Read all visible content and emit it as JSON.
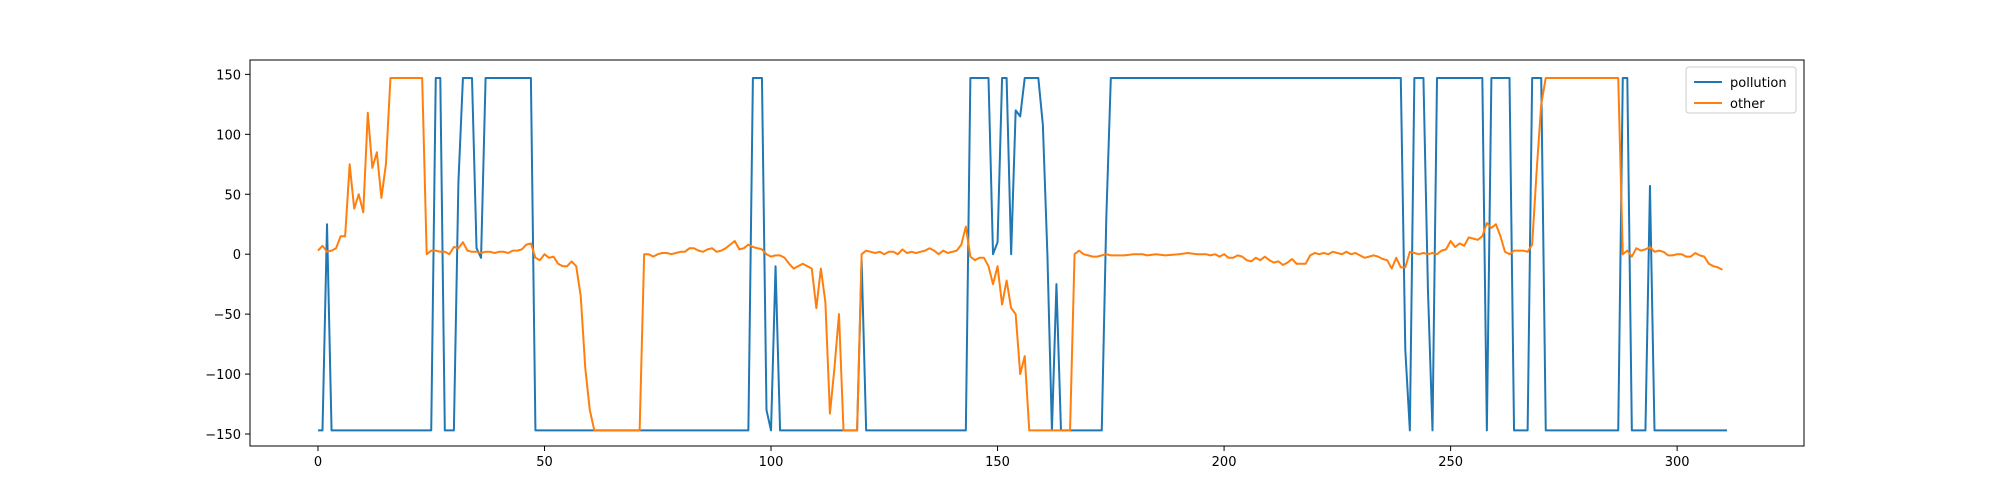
{
  "chart_data": {
    "type": "line",
    "title": "",
    "xlabel": "",
    "ylabel": "",
    "xlim": [
      -15,
      328
    ],
    "ylim": [
      -160,
      162
    ],
    "xticks": [
      0,
      50,
      100,
      150,
      200,
      250,
      300
    ],
    "yticks": [
      -150,
      -100,
      -50,
      0,
      50,
      100,
      150
    ],
    "grid": false,
    "legend_position": "top-right",
    "series": [
      {
        "name": "pollution",
        "color": "#1f77b4",
        "points": [
          [
            0,
            -147
          ],
          [
            1,
            -147
          ],
          [
            2,
            25
          ],
          [
            3,
            -147
          ],
          [
            25,
            -147
          ],
          [
            26,
            147
          ],
          [
            27,
            147
          ],
          [
            28,
            -147
          ],
          [
            30,
            -147
          ],
          [
            31,
            60
          ],
          [
            32,
            147
          ],
          [
            34,
            147
          ],
          [
            35,
            5
          ],
          [
            36,
            -3
          ],
          [
            37,
            147
          ],
          [
            47,
            147
          ],
          [
            48,
            -147
          ],
          [
            95,
            -147
          ],
          [
            96,
            147
          ],
          [
            98,
            147
          ],
          [
            99,
            -130
          ],
          [
            100,
            -147
          ],
          [
            101,
            -10
          ],
          [
            102,
            -147
          ],
          [
            119,
            -147
          ],
          [
            120,
            -5
          ],
          [
            121,
            -147
          ],
          [
            143,
            -147
          ],
          [
            144,
            147
          ],
          [
            148,
            147
          ],
          [
            149,
            0
          ],
          [
            150,
            10
          ],
          [
            151,
            147
          ],
          [
            152,
            147
          ],
          [
            153,
            0
          ],
          [
            154,
            120
          ],
          [
            155,
            115
          ],
          [
            156,
            147
          ],
          [
            159,
            147
          ],
          [
            160,
            108
          ],
          [
            161,
            0
          ],
          [
            162,
            -147
          ],
          [
            163,
            -25
          ],
          [
            164,
            -147
          ],
          [
            173,
            -147
          ],
          [
            174,
            30
          ],
          [
            175,
            147
          ],
          [
            239,
            147
          ],
          [
            240,
            -80
          ],
          [
            241,
            -147
          ],
          [
            242,
            147
          ],
          [
            244,
            147
          ],
          [
            245,
            -30
          ],
          [
            246,
            -147
          ],
          [
            247,
            147
          ],
          [
            257,
            147
          ],
          [
            258,
            -147
          ],
          [
            259,
            147
          ],
          [
            263,
            147
          ],
          [
            264,
            -147
          ],
          [
            267,
            -147
          ],
          [
            268,
            147
          ],
          [
            270,
            147
          ],
          [
            271,
            -147
          ],
          [
            287,
            -147
          ],
          [
            288,
            147
          ],
          [
            289,
            147
          ],
          [
            290,
            -147
          ],
          [
            293,
            -147
          ],
          [
            294,
            57
          ],
          [
            295,
            -147
          ],
          [
            311,
            -147
          ]
        ]
      },
      {
        "name": "other",
        "color": "#ff7f0e",
        "points": [
          [
            0,
            3
          ],
          [
            1,
            7
          ],
          [
            2,
            2
          ],
          [
            3,
            3
          ],
          [
            4,
            5
          ],
          [
            5,
            15
          ],
          [
            6,
            15
          ],
          [
            7,
            75
          ],
          [
            8,
            38
          ],
          [
            9,
            50
          ],
          [
            10,
            35
          ],
          [
            11,
            118
          ],
          [
            12,
            72
          ],
          [
            13,
            85
          ],
          [
            14,
            47
          ],
          [
            15,
            75
          ],
          [
            16,
            147
          ],
          [
            23,
            147
          ],
          [
            24,
            0
          ],
          [
            25,
            3
          ],
          [
            26,
            3
          ],
          [
            27,
            2
          ],
          [
            28,
            2
          ],
          [
            29,
            0
          ],
          [
            30,
            6
          ],
          [
            31,
            5
          ],
          [
            32,
            10
          ],
          [
            33,
            3
          ],
          [
            34,
            2
          ],
          [
            35,
            2
          ],
          [
            36,
            1
          ],
          [
            37,
            2
          ],
          [
            38,
            2
          ],
          [
            39,
            1
          ],
          [
            40,
            2
          ],
          [
            41,
            2
          ],
          [
            42,
            1
          ],
          [
            43,
            3
          ],
          [
            44,
            3
          ],
          [
            45,
            4
          ],
          [
            46,
            8
          ],
          [
            47,
            9
          ],
          [
            48,
            -3
          ],
          [
            49,
            -5
          ],
          [
            50,
            0
          ],
          [
            51,
            -3
          ],
          [
            52,
            -2
          ],
          [
            53,
            -8
          ],
          [
            54,
            -10
          ],
          [
            55,
            -10
          ],
          [
            56,
            -6
          ],
          [
            57,
            -10
          ],
          [
            58,
            -35
          ],
          [
            59,
            -95
          ],
          [
            60,
            -130
          ],
          [
            61,
            -147
          ],
          [
            71,
            -147
          ],
          [
            72,
            0
          ],
          [
            73,
            0
          ],
          [
            74,
            -2
          ],
          [
            75,
            0
          ],
          [
            76,
            1
          ],
          [
            77,
            1
          ],
          [
            78,
            0
          ],
          [
            79,
            1
          ],
          [
            80,
            2
          ],
          [
            81,
            2
          ],
          [
            82,
            5
          ],
          [
            83,
            5
          ],
          [
            84,
            3
          ],
          [
            85,
            2
          ],
          [
            86,
            4
          ],
          [
            87,
            5
          ],
          [
            88,
            2
          ],
          [
            89,
            3
          ],
          [
            90,
            5
          ],
          [
            91,
            8
          ],
          [
            92,
            11
          ],
          [
            93,
            4
          ],
          [
            94,
            5
          ],
          [
            95,
            8
          ],
          [
            96,
            6
          ],
          [
            97,
            5
          ],
          [
            98,
            4
          ],
          [
            99,
            0
          ],
          [
            100,
            -2
          ],
          [
            101,
            -1
          ],
          [
            102,
            -1
          ],
          [
            103,
            -3
          ],
          [
            104,
            -8
          ],
          [
            105,
            -12
          ],
          [
            106,
            -10
          ],
          [
            107,
            -8
          ],
          [
            108,
            -10
          ],
          [
            109,
            -12
          ],
          [
            110,
            -45
          ],
          [
            111,
            -12
          ],
          [
            112,
            -40
          ],
          [
            113,
            -133
          ],
          [
            114,
            -95
          ],
          [
            115,
            -50
          ],
          [
            116,
            -147
          ],
          [
            119,
            -147
          ],
          [
            120,
            0
          ],
          [
            121,
            3
          ],
          [
            122,
            2
          ],
          [
            123,
            1
          ],
          [
            124,
            2
          ],
          [
            125,
            0
          ],
          [
            126,
            2
          ],
          [
            127,
            2
          ],
          [
            128,
            0
          ],
          [
            129,
            4
          ],
          [
            130,
            1
          ],
          [
            131,
            2
          ],
          [
            132,
            1
          ],
          [
            133,
            2
          ],
          [
            134,
            3
          ],
          [
            135,
            5
          ],
          [
            136,
            3
          ],
          [
            137,
            0
          ],
          [
            138,
            3
          ],
          [
            139,
            1
          ],
          [
            140,
            2
          ],
          [
            141,
            3
          ],
          [
            142,
            8
          ],
          [
            143,
            23
          ],
          [
            144,
            -2
          ],
          [
            145,
            -5
          ],
          [
            146,
            -3
          ],
          [
            147,
            -3
          ],
          [
            148,
            -10
          ],
          [
            149,
            -25
          ],
          [
            150,
            -10
          ],
          [
            151,
            -42
          ],
          [
            152,
            -22
          ],
          [
            153,
            -45
          ],
          [
            154,
            -50
          ],
          [
            155,
            -100
          ],
          [
            156,
            -85
          ],
          [
            157,
            -147
          ],
          [
            166,
            -147
          ],
          [
            167,
            0
          ],
          [
            168,
            3
          ],
          [
            169,
            0
          ],
          [
            170,
            -1
          ],
          [
            171,
            -2
          ],
          [
            172,
            -2
          ],
          [
            173,
            -1
          ],
          [
            174,
            0
          ],
          [
            175,
            -1
          ],
          [
            178,
            -1
          ],
          [
            180,
            0
          ],
          [
            182,
            0
          ],
          [
            183,
            -1
          ],
          [
            185,
            0
          ],
          [
            187,
            -1
          ],
          [
            190,
            0
          ],
          [
            192,
            1
          ],
          [
            194,
            0
          ],
          [
            196,
            0
          ],
          [
            197,
            -1
          ],
          [
            198,
            0
          ],
          [
            199,
            -2
          ],
          [
            200,
            0
          ],
          [
            201,
            -3
          ],
          [
            202,
            -3
          ],
          [
            203,
            -1
          ],
          [
            204,
            -2
          ],
          [
            205,
            -5
          ],
          [
            206,
            -6
          ],
          [
            207,
            -3
          ],
          [
            208,
            -5
          ],
          [
            209,
            -2
          ],
          [
            210,
            -5
          ],
          [
            211,
            -7
          ],
          [
            212,
            -6
          ],
          [
            213,
            -9
          ],
          [
            214,
            -7
          ],
          [
            215,
            -4
          ],
          [
            216,
            -8
          ],
          [
            217,
            -8
          ],
          [
            218,
            -8
          ],
          [
            219,
            -1
          ],
          [
            220,
            1
          ],
          [
            221,
            0
          ],
          [
            222,
            1
          ],
          [
            223,
            0
          ],
          [
            224,
            2
          ],
          [
            225,
            1
          ],
          [
            226,
            0
          ],
          [
            227,
            2
          ],
          [
            228,
            0
          ],
          [
            229,
            1
          ],
          [
            230,
            -1
          ],
          [
            231,
            -3
          ],
          [
            232,
            -2
          ],
          [
            233,
            -1
          ],
          [
            234,
            -2
          ],
          [
            235,
            -4
          ],
          [
            236,
            -5
          ],
          [
            237,
            -12
          ],
          [
            238,
            -3
          ],
          [
            239,
            -11
          ],
          [
            240,
            -11
          ],
          [
            241,
            2
          ],
          [
            242,
            1
          ],
          [
            243,
            0
          ],
          [
            244,
            1
          ],
          [
            245,
            0
          ],
          [
            246,
            1
          ],
          [
            247,
            0
          ],
          [
            248,
            3
          ],
          [
            249,
            4
          ],
          [
            250,
            11
          ],
          [
            251,
            6
          ],
          [
            252,
            9
          ],
          [
            253,
            7
          ],
          [
            254,
            14
          ],
          [
            255,
            13
          ],
          [
            256,
            12
          ],
          [
            257,
            15
          ],
          [
            258,
            26
          ],
          [
            259,
            22
          ],
          [
            260,
            25
          ],
          [
            261,
            15
          ],
          [
            262,
            2
          ],
          [
            263,
            0
          ],
          [
            264,
            3
          ],
          [
            265,
            3
          ],
          [
            266,
            3
          ],
          [
            267,
            2
          ],
          [
            268,
            8
          ],
          [
            269,
            70
          ],
          [
            270,
            125
          ],
          [
            271,
            147
          ],
          [
            287,
            147
          ],
          [
            288,
            0
          ],
          [
            289,
            3
          ],
          [
            290,
            -2
          ],
          [
            291,
            5
          ],
          [
            292,
            3
          ],
          [
            293,
            4
          ],
          [
            294,
            6
          ],
          [
            295,
            2
          ],
          [
            296,
            3
          ],
          [
            297,
            2
          ],
          [
            298,
            -1
          ],
          [
            299,
            -1
          ],
          [
            300,
            0
          ],
          [
            301,
            0
          ],
          [
            302,
            -2
          ],
          [
            303,
            -2
          ],
          [
            304,
            1
          ],
          [
            305,
            -1
          ],
          [
            306,
            -2
          ],
          [
            307,
            -8
          ],
          [
            308,
            -10
          ],
          [
            309,
            -11
          ],
          [
            310,
            -13
          ]
        ]
      }
    ]
  }
}
